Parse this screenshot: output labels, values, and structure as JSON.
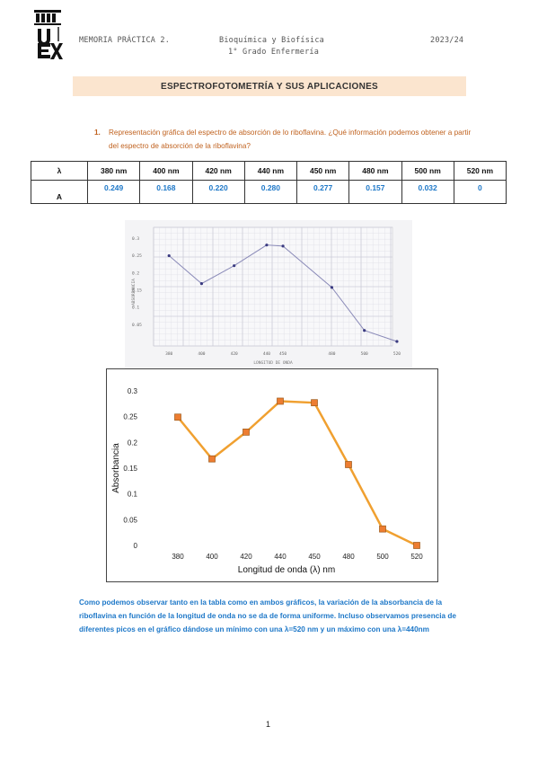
{
  "header": {
    "left": "MEMORIA PRÁCTICA 2.",
    "center_line1": "Bioquímica y Biofísica",
    "center_line2": "1° Grado Enfermería",
    "right": "2023/24",
    "logo_text": "UEX"
  },
  "section_title": "ESPECTROFOTOMETRÍA Y SUS APLICACIONES",
  "question": {
    "number": "1.",
    "text": "Representación gráfica del espectro de absorción de lo riboflavina. ¿Qué información podemos obtener a partir del espectro de absorción de la riboflavina?"
  },
  "table": {
    "row_headers": [
      "λ",
      "A"
    ],
    "wavelengths": [
      "380 nm",
      "400 nm",
      "420 nm",
      "440 nm",
      "450 nm",
      "480 nm",
      "500 nm",
      "520 nm"
    ],
    "absorbances": [
      "0.249",
      "0.168",
      "0.220",
      "0.280",
      "0.277",
      "0.157",
      "0.032",
      "0"
    ]
  },
  "colors": {
    "question": "#c0621f",
    "answer": "#1e78c8",
    "banner": "#fbe5cf",
    "line": "#f0a030",
    "marker": "#ed7d31"
  },
  "chart_data": [
    {
      "type": "line",
      "description_source": "hand-drawn graph on graph paper (photo)",
      "x": [
        380,
        400,
        420,
        440,
        450,
        480,
        500,
        520
      ],
      "y": [
        0.249,
        0.168,
        0.22,
        0.28,
        0.277,
        0.157,
        0.032,
        0
      ],
      "tick_labels_x": [
        "380",
        "400",
        "420",
        "440",
        "450",
        "480",
        "500",
        "520"
      ],
      "tick_labels_y": [
        "0.3",
        "0.25",
        "0.2",
        "0.15",
        "0.1",
        "0.05"
      ],
      "xlabel": "LONGITUD DE ONDA",
      "ylabel": "ABSORBANCIA",
      "grid": true
    },
    {
      "type": "line",
      "categories": [
        "380",
        "400",
        "420",
        "440",
        "450",
        "480",
        "500",
        "520"
      ],
      "values": [
        0.249,
        0.168,
        0.22,
        0.28,
        0.277,
        0.157,
        0.032,
        0
      ],
      "y_ticks": [
        "0",
        "0.05",
        "0.1",
        "0.15",
        "0.2",
        "0.25",
        "0.3"
      ],
      "ylim": [
        0,
        0.3
      ],
      "xlabel": "Longitud de onda (λ) nm",
      "ylabel": "Absorbancia",
      "grid": false
    }
  ],
  "conclusion": "Como podemos observar tanto en la tabla como en ambos gráficos, la variación de la absorbancia de la riboflavina en función de la longitud de onda no se da de forma uniforme. Incluso observamos presencia de diferentes picos en el gráfico dándose un mínimo con una λ=520 nm y un máximo con una λ=440nm",
  "page_number": "1"
}
